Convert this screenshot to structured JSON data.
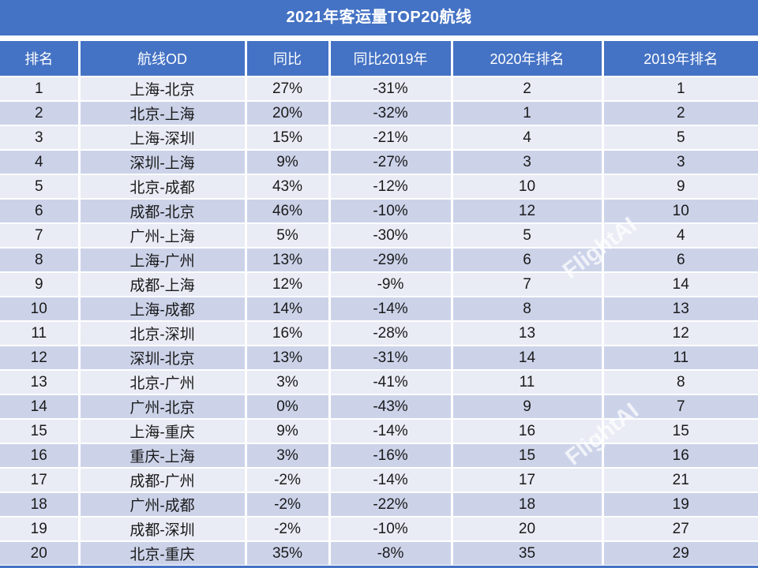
{
  "title": "2021年客运量TOP20航线",
  "watermark": {
    "text": "FlightAI"
  },
  "colors": {
    "header_blue": "#4472C4",
    "row_light": "#E9ECF5",
    "row_dark": "#CCD3E9",
    "header_text": "#FFFFFF",
    "cell_text": "#1A1A1A",
    "divider": "#FFFFFF"
  },
  "chart_data": {
    "type": "table",
    "title": "2021年客运量TOP20航线",
    "columns": [
      "排名",
      "航线OD",
      "同比",
      "同比2019年",
      "2020年排名",
      "2019年排名"
    ],
    "column_keys": [
      "rank",
      "route-od",
      "yoy",
      "yoy-vs-2019",
      "rank-2020",
      "rank-2019"
    ],
    "rows": [
      [
        "1",
        "上海-北京",
        "27%",
        "-31%",
        "2",
        "1"
      ],
      [
        "2",
        "北京-上海",
        "20%",
        "-32%",
        "1",
        "2"
      ],
      [
        "3",
        "上海-深圳",
        "15%",
        "-21%",
        "4",
        "5"
      ],
      [
        "4",
        "深圳-上海",
        "9%",
        "-27%",
        "3",
        "3"
      ],
      [
        "5",
        "北京-成都",
        "43%",
        "-12%",
        "10",
        "9"
      ],
      [
        "6",
        "成都-北京",
        "46%",
        "-10%",
        "12",
        "10"
      ],
      [
        "7",
        "广州-上海",
        "5%",
        "-30%",
        "5",
        "4"
      ],
      [
        "8",
        "上海-广州",
        "13%",
        "-29%",
        "6",
        "6"
      ],
      [
        "9",
        "成都-上海",
        "12%",
        "-9%",
        "7",
        "14"
      ],
      [
        "10",
        "上海-成都",
        "14%",
        "-14%",
        "8",
        "13"
      ],
      [
        "11",
        "北京-深圳",
        "16%",
        "-28%",
        "13",
        "12"
      ],
      [
        "12",
        "深圳-北京",
        "13%",
        "-31%",
        "14",
        "11"
      ],
      [
        "13",
        "北京-广州",
        "3%",
        "-41%",
        "11",
        "8"
      ],
      [
        "14",
        "广州-北京",
        "0%",
        "-43%",
        "9",
        "7"
      ],
      [
        "15",
        "上海-重庆",
        "9%",
        "-14%",
        "16",
        "15"
      ],
      [
        "16",
        "重庆-上海",
        "3%",
        "-16%",
        "15",
        "16"
      ],
      [
        "17",
        "成都-广州",
        "-2%",
        "-14%",
        "17",
        "21"
      ],
      [
        "18",
        "广州-成都",
        "-2%",
        "-22%",
        "18",
        "19"
      ],
      [
        "19",
        "成都-深圳",
        "-2%",
        "-10%",
        "20",
        "27"
      ],
      [
        "20",
        "北京-重庆",
        "35%",
        "-8%",
        "35",
        "29"
      ]
    ]
  }
}
